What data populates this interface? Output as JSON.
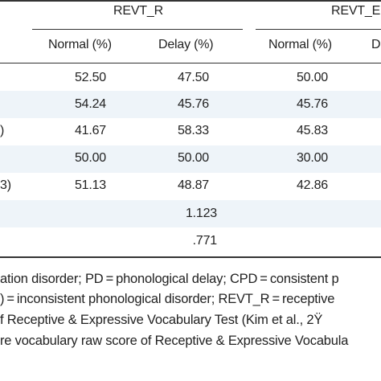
{
  "table": {
    "group_headers": [
      "REVT_R",
      "REVT_E"
    ],
    "sub_headers": [
      "Normal (%)",
      "Delay (%)",
      "Normal (%)",
      "Delay (%)"
    ],
    "rows": [
      {
        "label": "",
        "cells": [
          "52.50",
          "47.50",
          "50.00",
          ""
        ]
      },
      {
        "label": "",
        "cells": [
          "54.24",
          "45.76",
          "45.76",
          ""
        ]
      },
      {
        "label": ")",
        "cells": [
          "41.67",
          "58.33",
          "45.83",
          ""
        ]
      },
      {
        "label": "",
        "cells": [
          "50.00",
          "50.00",
          "30.00",
          ""
        ]
      },
      {
        "label": "3)",
        "cells": [
          "51.13",
          "48.87",
          "42.86",
          ""
        ]
      }
    ],
    "stat_rows": [
      "1.123",
      ".771"
    ]
  },
  "notes": [
    "ation disorder; PD = phonological delay; CPD = consistent p",
    ") = inconsistent phonological disorder; REVT_R = receptive",
    "f Receptive & Expressive Vocabulary Test (Kim et al., 2Ÿ",
    "re vocabulary raw score of Receptive & Expressive Vocabula"
  ]
}
